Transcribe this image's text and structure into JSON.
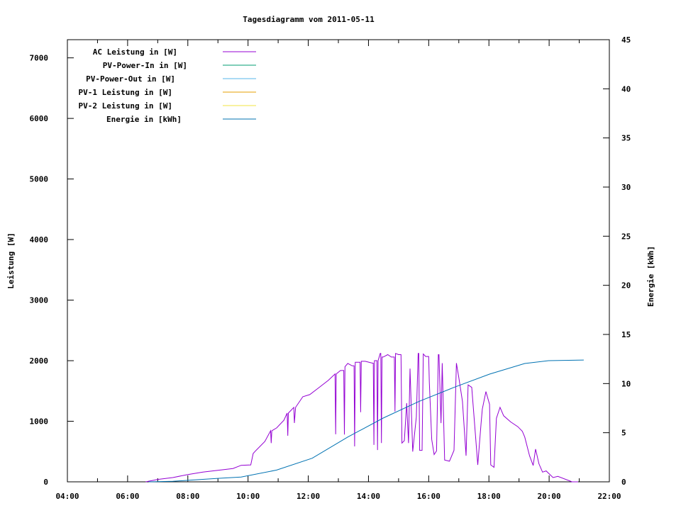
{
  "chart_data": {
    "type": "line",
    "title": "Tagesdiagramm vom 2011-05-11",
    "xlabel": "",
    "ylabel": "Leistung [W]",
    "y2label": "Energie [kWh]",
    "xlim": [
      4,
      22
    ],
    "ylim": [
      0,
      7300
    ],
    "y2lim": [
      0,
      45
    ],
    "grid": false,
    "legend_position": "top-left",
    "x_ticks": [
      {
        "value": 4,
        "label": "04:00"
      },
      {
        "value": 6,
        "label": "06:00"
      },
      {
        "value": 8,
        "label": "08:00"
      },
      {
        "value": 10,
        "label": "10:00"
      },
      {
        "value": 12,
        "label": "12:00"
      },
      {
        "value": 14,
        "label": "14:00"
      },
      {
        "value": 16,
        "label": "16:00"
      },
      {
        "value": 18,
        "label": "18:00"
      },
      {
        "value": 20,
        "label": "20:00"
      },
      {
        "value": 22,
        "label": "22:00"
      }
    ],
    "y_ticks": [
      {
        "value": 0,
        "label": "0"
      },
      {
        "value": 1000,
        "label": "1000"
      },
      {
        "value": 2000,
        "label": "2000"
      },
      {
        "value": 3000,
        "label": "3000"
      },
      {
        "value": 4000,
        "label": "4000"
      },
      {
        "value": 5000,
        "label": "5000"
      },
      {
        "value": 6000,
        "label": "6000"
      },
      {
        "value": 7000,
        "label": "7000"
      }
    ],
    "y2_ticks": [
      {
        "value": 0,
        "label": "0"
      },
      {
        "value": 5,
        "label": "5"
      },
      {
        "value": 10,
        "label": "10"
      },
      {
        "value": 15,
        "label": "15"
      },
      {
        "value": 20,
        "label": "20"
      },
      {
        "value": 25,
        "label": "25"
      },
      {
        "value": 30,
        "label": "30"
      },
      {
        "value": 35,
        "label": "35"
      },
      {
        "value": 40,
        "label": "40"
      },
      {
        "value": 45,
        "label": "45"
      }
    ],
    "series": [
      {
        "name": "AC Leistung in [W]",
        "color": "#9400d3",
        "axis": "y",
        "points": [
          [
            6.6,
            0
          ],
          [
            7,
            40
          ],
          [
            7.5,
            70
          ],
          [
            8,
            120
          ],
          [
            8.5,
            160
          ],
          [
            9,
            190
          ],
          [
            9.5,
            220
          ],
          [
            9.77,
            273
          ],
          [
            10.09,
            280
          ],
          [
            10.17,
            468
          ],
          [
            10.24,
            507
          ],
          [
            10.56,
            667
          ],
          [
            10.75,
            843
          ],
          [
            10.77,
            640
          ],
          [
            10.79,
            843
          ],
          [
            10.95,
            890
          ],
          [
            11.19,
            1017
          ],
          [
            11.3,
            1135
          ],
          [
            11.32,
            760
          ],
          [
            11.34,
            1135
          ],
          [
            11.52,
            1229
          ],
          [
            11.54,
            971
          ],
          [
            11.58,
            1229
          ],
          [
            11.82,
            1405
          ],
          [
            12.05,
            1440
          ],
          [
            12.36,
            1557
          ],
          [
            12.67,
            1678
          ],
          [
            12.89,
            1780
          ],
          [
            12.91,
            785
          ],
          [
            12.93,
            1780
          ],
          [
            13.07,
            1838
          ],
          [
            13.18,
            1838
          ],
          [
            13.2,
            780
          ],
          [
            13.22,
            1900
          ],
          [
            13.31,
            1955
          ],
          [
            13.46,
            1915
          ],
          [
            13.52,
            1915
          ],
          [
            13.54,
            585
          ],
          [
            13.56,
            1975
          ],
          [
            13.66,
            1975
          ],
          [
            13.72,
            1975
          ],
          [
            13.74,
            1150
          ],
          [
            13.76,
            1990
          ],
          [
            13.89,
            1990
          ],
          [
            14.13,
            1960
          ],
          [
            14.16,
            1960
          ],
          [
            14.18,
            610
          ],
          [
            14.2,
            2000
          ],
          [
            14.28,
            2000
          ],
          [
            14.3,
            525
          ],
          [
            14.32,
            2000
          ],
          [
            14.39,
            2120
          ],
          [
            14.41,
            2120
          ],
          [
            14.43,
            640
          ],
          [
            14.45,
            2060
          ],
          [
            14.49,
            2060
          ],
          [
            14.64,
            2100
          ],
          [
            14.76,
            2060
          ],
          [
            14.86,
            2060
          ],
          [
            14.88,
            1160
          ],
          [
            14.9,
            2120
          ],
          [
            15.0,
            2100
          ],
          [
            15.08,
            2100
          ],
          [
            15.11,
            640
          ],
          [
            15.19,
            680
          ],
          [
            15.27,
            1300
          ],
          [
            15.33,
            640
          ],
          [
            15.38,
            1870
          ],
          [
            15.47,
            500
          ],
          [
            15.59,
            1070
          ],
          [
            15.65,
            2120
          ],
          [
            15.67,
            2120
          ],
          [
            15.7,
            520
          ],
          [
            15.78,
            520
          ],
          [
            15.82,
            2110
          ],
          [
            15.9,
            2070
          ],
          [
            16.0,
            2070
          ],
          [
            16.02,
            1650
          ],
          [
            16.1,
            700
          ],
          [
            16.18,
            450
          ],
          [
            16.26,
            510
          ],
          [
            16.32,
            2100
          ],
          [
            16.34,
            2100
          ],
          [
            16.41,
            970
          ],
          [
            16.45,
            1960
          ],
          [
            16.53,
            360
          ],
          [
            16.69,
            340
          ],
          [
            16.84,
            520
          ],
          [
            16.92,
            1960
          ],
          [
            17.0,
            1720
          ],
          [
            17.12,
            1330
          ],
          [
            17.24,
            430
          ],
          [
            17.31,
            1600
          ],
          [
            17.43,
            1560
          ],
          [
            17.51,
            1050
          ],
          [
            17.63,
            280
          ],
          [
            17.74,
            970
          ],
          [
            17.78,
            1200
          ],
          [
            17.9,
            1490
          ],
          [
            18.02,
            1280
          ],
          [
            18.06,
            280
          ],
          [
            18.17,
            240
          ],
          [
            18.25,
            1050
          ],
          [
            18.37,
            1230
          ],
          [
            18.49,
            1090
          ],
          [
            18.72,
            990
          ],
          [
            18.96,
            910
          ],
          [
            19.11,
            835
          ],
          [
            19.19,
            740
          ],
          [
            19.35,
            430
          ],
          [
            19.47,
            270
          ],
          [
            19.55,
            540
          ],
          [
            19.66,
            300
          ],
          [
            19.78,
            160
          ],
          [
            19.9,
            180
          ],
          [
            20.13,
            70
          ],
          [
            20.29,
            90
          ],
          [
            20.76,
            0
          ],
          [
            20.96,
            0
          ]
        ]
      },
      {
        "name": "PV-Power-In in [W]",
        "color": "#009e73",
        "axis": "y",
        "points": []
      },
      {
        "name": "PV-Power-Out in [W]",
        "color": "#56b4e9",
        "axis": "y",
        "points": []
      },
      {
        "name": "PV-1 Leistung in [W]",
        "color": "#e69f00",
        "axis": "y",
        "points": []
      },
      {
        "name": "PV-2 Leistung in [W]",
        "color": "#f0e442",
        "axis": "y",
        "points": []
      },
      {
        "name": "Energie in [kWh]",
        "color": "#0072b2",
        "axis": "y2",
        "points": [
          [
            6.7,
            0
          ],
          [
            7.5,
            0.05
          ],
          [
            8,
            0.15
          ],
          [
            9,
            0.35
          ],
          [
            9.77,
            0.48
          ],
          [
            10.95,
            1.2
          ],
          [
            12.13,
            2.4
          ],
          [
            13.31,
            4.56
          ],
          [
            14.49,
            6.49
          ],
          [
            15.67,
            8.17
          ],
          [
            16.84,
            9.61
          ],
          [
            18.02,
            10.96
          ],
          [
            19.19,
            12.04
          ],
          [
            19.98,
            12.33
          ],
          [
            21.15,
            12.4
          ]
        ]
      }
    ]
  }
}
